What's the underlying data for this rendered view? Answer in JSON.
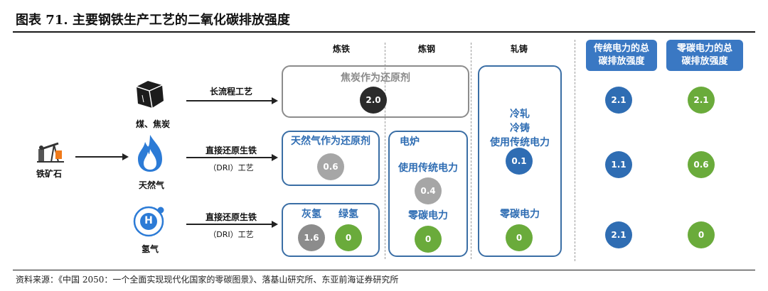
{
  "title": "图表 71. 主要钢铁生产工艺的二氧化碳排放强度",
  "source": "资料来源：《中国 2050：一个全面实现现代化国家的零碳图景》、落基山研究所、东亚前海证券研究所",
  "colors": {
    "blue": "#2f6db3",
    "green": "#6aab3b",
    "dark": "#2b2b2b",
    "gray": "#8c8c8c",
    "lightgray": "#a6a6a6",
    "header_blue": "#3a78c3"
  },
  "stage_headers": {
    "smelting": "炼铁",
    "steelmaking": "炼钢",
    "rolling": "轧铸"
  },
  "total_headers": {
    "traditional": "传统电力的总碳排放强度",
    "zero_carbon": "零碳电力的总碳排放强度"
  },
  "inputs": {
    "ore": {
      "label": "铁矿石",
      "icon": "oil-pump-icon"
    },
    "coal": {
      "label": "煤、焦炭",
      "icon": "coal-icon"
    },
    "gas": {
      "label": "天然气",
      "icon": "flame-icon"
    },
    "hydrogen": {
      "label": "氢气",
      "icon": "hydrogen-icon",
      "symbol": "H"
    }
  },
  "processes": {
    "long": {
      "label": "长流程工艺"
    },
    "dri_gas": {
      "label": "直接还原生铁",
      "sublabel": "（DRI）工艺"
    },
    "dri_h2": {
      "label": "直接还原生铁",
      "sublabel": "（DRI）工艺"
    }
  },
  "row_long": {
    "box_label": "焦炭作为还原剂",
    "value": "2.0",
    "total_traditional": "2.1",
    "total_zero": "2.1"
  },
  "row_gas": {
    "box_label": "天然气作为还原剂",
    "value": "0.6",
    "total_traditional": "1.1",
    "total_zero": "0.6"
  },
  "row_h2": {
    "gray_label": "灰氢",
    "gray_value": "1.6",
    "green_label": "绿氢",
    "green_value": "0",
    "total_traditional": "2.1",
    "total_zero": "0"
  },
  "eaf": {
    "title": "电炉",
    "trad_label": "使用传统电力",
    "trad_value": "0.4",
    "zero_label": "零碳电力",
    "zero_value": "0"
  },
  "rolling": {
    "line1": "冷轧",
    "line2": "冷铸",
    "line3": "使用传统电力",
    "trad_value": "0.1",
    "zero_label": "零碳电力",
    "zero_value": "0"
  }
}
